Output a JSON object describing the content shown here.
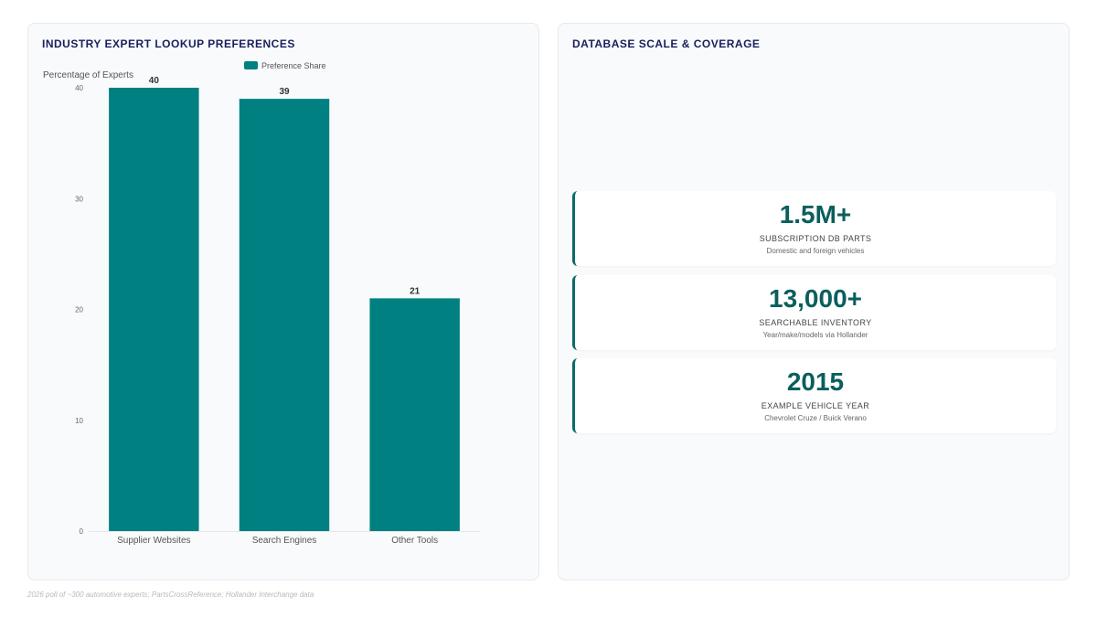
{
  "left_panel": {
    "title": "INDUSTRY EXPERT LOOKUP PREFERENCES"
  },
  "right_panel": {
    "title": "DATABASE SCALE & COVERAGE",
    "stats": [
      {
        "value": "1.5M+",
        "label": "SUBSCRIPTION DB PARTS",
        "sub": "Domestic and foreign vehicles"
      },
      {
        "value": "13,000+",
        "label": "SEARCHABLE INVENTORY",
        "sub": "Year/make/models via Hollander"
      },
      {
        "value": "2015",
        "label": "EXAMPLE VEHICLE YEAR",
        "sub": "Chevrolet Cruze / Buick Verano"
      }
    ]
  },
  "footnote": "2026 poll of ~300 automotive experts; PartsCrossReference; Hollander Interchange data",
  "colors": {
    "bar": "#008080",
    "accent": "#0a5f5c",
    "title": "#1a1f5c"
  },
  "chart_data": {
    "type": "bar",
    "title": "",
    "xlabel": "",
    "ylabel": "Percentage of Experts",
    "categories": [
      "Supplier Websites",
      "Search Engines",
      "Other Tools"
    ],
    "series": [
      {
        "name": "Preference Share",
        "values": [
          40,
          39,
          21
        ]
      }
    ],
    "ylim": [
      0,
      40
    ],
    "yticks": [
      0,
      10,
      20,
      30,
      40
    ],
    "data_labels": true,
    "legend": "top-center",
    "grid": false
  }
}
